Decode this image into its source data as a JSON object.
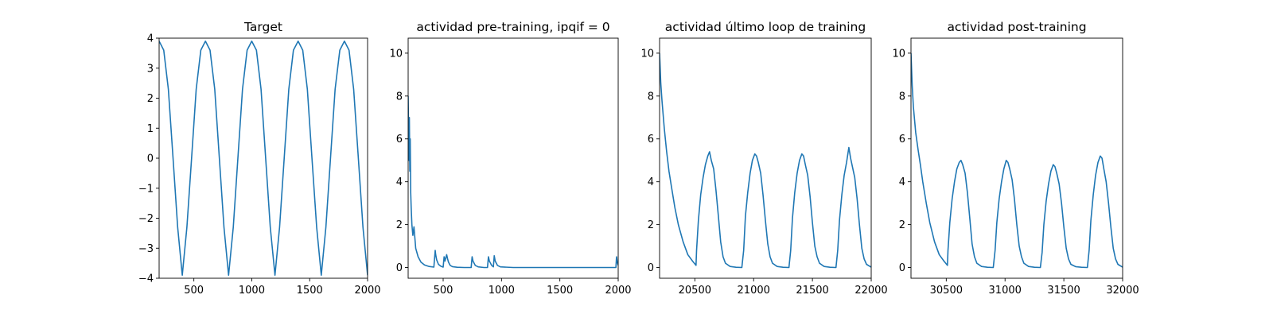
{
  "chart_data": [
    {
      "type": "line",
      "title": "Target",
      "xlabel": "",
      "ylabel": "",
      "xlim": [
        200,
        2000
      ],
      "ylim": [
        -4,
        4
      ],
      "xticks": [
        500,
        1000,
        1500,
        2000
      ],
      "yticks": [
        -4,
        -3,
        -2,
        -1,
        0,
        1,
        2,
        3,
        4
      ],
      "grid": false,
      "legend": "none",
      "line_color": "#1f77b4",
      "series": [
        {
          "x": [
            200,
            240,
            280,
            320,
            360,
            400,
            440,
            480,
            520,
            560,
            600,
            640,
            680,
            720,
            760,
            800,
            840,
            880,
            920,
            960,
            1000,
            1040,
            1080,
            1120,
            1160,
            1200,
            1240,
            1280,
            1320,
            1360,
            1400,
            1440,
            1480,
            1520,
            1560,
            1600,
            1640,
            1680,
            1720,
            1760,
            1800,
            1840,
            1880,
            1920,
            1960,
            2000
          ],
          "y": [
            3.9,
            3.6,
            2.3,
            0.0,
            -2.3,
            -3.9,
            -2.3,
            0.0,
            2.3,
            3.6,
            3.9,
            3.6,
            2.3,
            0.0,
            -2.3,
            -3.9,
            -2.3,
            0.0,
            2.3,
            3.6,
            3.9,
            3.6,
            2.3,
            0.0,
            -2.3,
            -3.9,
            -2.3,
            0.0,
            2.3,
            3.6,
            3.9,
            3.6,
            2.3,
            0.0,
            -2.3,
            -3.9,
            -2.3,
            0.0,
            2.3,
            3.6,
            3.9,
            3.6,
            2.3,
            0.0,
            -2.3,
            -3.9
          ]
        }
      ]
    },
    {
      "type": "line",
      "title": "actividad pre-training, ipqif = 0",
      "xlabel": "",
      "ylabel": "",
      "xlim": [
        200,
        2000
      ],
      "ylim": [
        -0.5,
        10.7
      ],
      "xticks": [
        500,
        1000,
        1500,
        2000
      ],
      "yticks": [
        0,
        2,
        4,
        6,
        8,
        10
      ],
      "grid": false,
      "legend": "none",
      "line_color": "#1f77b4",
      "series": [
        {
          "x": [
            200,
            203,
            206,
            210,
            214,
            218,
            222,
            226,
            232,
            240,
            250,
            265,
            285,
            310,
            340,
            380,
            420,
            432,
            436,
            445,
            460,
            480,
            500,
            508,
            516,
            530,
            538,
            546,
            560,
            580,
            620,
            680,
            740,
            748,
            756,
            775,
            800,
            850,
            880,
            888,
            896,
            915,
            930,
            938,
            946,
            965,
            990,
            1100,
            1300,
            1500,
            1700,
            1900,
            1980,
            1986,
            1992,
            2000
          ],
          "y": [
            8.0,
            6.8,
            5.0,
            7.0,
            4.5,
            6.0,
            3.5,
            2.8,
            2.0,
            1.5,
            1.9,
            0.9,
            0.5,
            0.25,
            0.12,
            0.05,
            0.02,
            0.8,
            0.6,
            0.35,
            0.15,
            0.06,
            0.02,
            0.5,
            0.3,
            0.6,
            0.4,
            0.25,
            0.1,
            0.04,
            0.01,
            0.0,
            0.0,
            0.5,
            0.3,
            0.1,
            0.03,
            0.0,
            0.0,
            0.5,
            0.3,
            0.1,
            0.03,
            0.55,
            0.3,
            0.1,
            0.03,
            0.0,
            0.0,
            0.0,
            0.0,
            0.0,
            0.0,
            0.5,
            0.25,
            0.1
          ]
        }
      ]
    },
    {
      "type": "line",
      "title": "actividad último loop de training",
      "xlabel": "",
      "ylabel": "",
      "xlim": [
        20200,
        22000
      ],
      "ylim": [
        -0.5,
        10.7
      ],
      "xticks": [
        20500,
        21000,
        21500,
        22000
      ],
      "yticks": [
        0,
        2,
        4,
        6,
        8,
        10
      ],
      "grid": false,
      "legend": "none",
      "line_color": "#1f77b4",
      "series": [
        {
          "x": [
            20200,
            20210,
            20220,
            20240,
            20260,
            20280,
            20300,
            20330,
            20360,
            20400,
            20440,
            20480,
            20510,
            20515,
            20530,
            20550,
            20570,
            20590,
            20610,
            20625,
            20640,
            20660,
            20680,
            20700,
            20720,
            20740,
            20760,
            20800,
            20850,
            20900,
            20915,
            20930,
            20950,
            20970,
            20990,
            21010,
            21025,
            21040,
            21060,
            21080,
            21100,
            21120,
            21140,
            21160,
            21200,
            21250,
            21300,
            21315,
            21330,
            21350,
            21370,
            21390,
            21410,
            21425,
            21440,
            21460,
            21480,
            21500,
            21520,
            21540,
            21560,
            21600,
            21650,
            21700,
            21715,
            21730,
            21750,
            21770,
            21790,
            21810,
            21825,
            21840,
            21860,
            21880,
            21900,
            21920,
            21940,
            21960,
            22000
          ],
          "y": [
            10.0,
            8.6,
            7.8,
            6.5,
            5.4,
            4.5,
            3.8,
            2.8,
            2.0,
            1.2,
            0.6,
            0.3,
            0.1,
            0.8,
            2.2,
            3.4,
            4.2,
            4.8,
            5.2,
            5.4,
            5.0,
            4.6,
            3.6,
            2.4,
            1.2,
            0.5,
            0.2,
            0.05,
            0.01,
            0.0,
            0.8,
            2.4,
            3.5,
            4.4,
            5.0,
            5.3,
            5.2,
            4.9,
            4.4,
            3.4,
            2.2,
            1.1,
            0.5,
            0.2,
            0.05,
            0.01,
            0.0,
            0.8,
            2.3,
            3.5,
            4.4,
            5.0,
            5.3,
            5.2,
            4.8,
            4.3,
            3.3,
            2.1,
            1.0,
            0.5,
            0.2,
            0.05,
            0.01,
            0.0,
            0.8,
            2.2,
            3.4,
            4.3,
            4.9,
            5.6,
            5.1,
            4.7,
            4.2,
            3.2,
            2.0,
            0.9,
            0.4,
            0.15,
            0.02
          ]
        }
      ]
    },
    {
      "type": "line",
      "title": "actividad post-training",
      "xlabel": "",
      "ylabel": "",
      "xlim": [
        30200,
        32000
      ],
      "ylim": [
        -0.5,
        10.7
      ],
      "xticks": [
        30500,
        31000,
        31500,
        32000
      ],
      "yticks": [
        0,
        2,
        4,
        6,
        8,
        10
      ],
      "grid": false,
      "legend": "none",
      "line_color": "#1f77b4",
      "series": [
        {
          "x": [
            30200,
            30210,
            30220,
            30240,
            30260,
            30280,
            30300,
            30330,
            30360,
            30400,
            30440,
            30480,
            30510,
            30515,
            30530,
            30550,
            30570,
            30590,
            30610,
            30625,
            30640,
            30660,
            30680,
            30700,
            30720,
            30740,
            30760,
            30800,
            30850,
            30900,
            30915,
            30930,
            30950,
            30970,
            30990,
            31010,
            31025,
            31040,
            31060,
            31080,
            31100,
            31120,
            31140,
            31160,
            31200,
            31250,
            31300,
            31315,
            31330,
            31350,
            31370,
            31390,
            31410,
            31425,
            31440,
            31460,
            31480,
            31500,
            31520,
            31540,
            31560,
            31600,
            31650,
            31700,
            31715,
            31730,
            31750,
            31770,
            31790,
            31810,
            31825,
            31840,
            31860,
            31880,
            31900,
            31920,
            31940,
            31960,
            32000
          ],
          "y": [
            10.0,
            8.5,
            7.5,
            6.3,
            5.5,
            4.8,
            4.0,
            3.0,
            2.1,
            1.2,
            0.6,
            0.3,
            0.1,
            0.8,
            2.1,
            3.2,
            4.0,
            4.6,
            4.9,
            5.0,
            4.8,
            4.4,
            3.5,
            2.3,
            1.1,
            0.5,
            0.2,
            0.05,
            0.01,
            0.0,
            0.8,
            2.1,
            3.2,
            4.0,
            4.6,
            5.0,
            4.9,
            4.6,
            4.1,
            3.2,
            2.0,
            1.0,
            0.5,
            0.2,
            0.05,
            0.01,
            0.0,
            0.7,
            2.0,
            3.1,
            3.9,
            4.5,
            4.8,
            4.7,
            4.4,
            3.9,
            3.0,
            1.9,
            0.9,
            0.4,
            0.15,
            0.04,
            0.01,
            0.0,
            0.8,
            2.2,
            3.4,
            4.3,
            4.9,
            5.2,
            5.1,
            4.6,
            4.0,
            3.0,
            1.9,
            0.9,
            0.4,
            0.15,
            0.02
          ]
        }
      ]
    }
  ]
}
